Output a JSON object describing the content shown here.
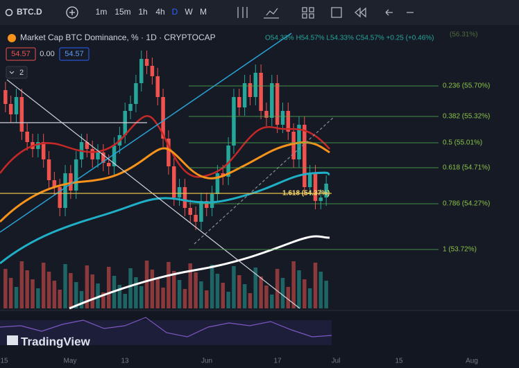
{
  "toolbar": {
    "symbol": "BTC.D",
    "intervals": [
      "1m",
      "15m",
      "1h",
      "4h",
      "D",
      "W",
      "M"
    ]
  },
  "legend": {
    "title": "Market Cap BTC Dominance, % · 1D · CRYPTOCAP",
    "ohlc": "O54.33% H54.57% L54.33% C54.57% +0.25 (+0.46%)",
    "price_badge": "54.57",
    "change_badge": "0.00",
    "price_badge_2": "54.57",
    "indicators_count": "2"
  },
  "fib_levels": [
    "0.236 (55.70%)",
    "0.382 (55.32%)",
    "0.5 (55.01%)",
    "0.618 (54.71%)",
    "0.786 (54.27%)",
    "1 (53.72%)"
  ],
  "fib_extension": "1.618 (54.37%)",
  "faded_label": "(56.31%)",
  "x_axis": [
    "15",
    "May",
    "13",
    "Jun",
    "17",
    "Jul",
    "15",
    "Aug"
  ],
  "watermark": "TradingView"
}
